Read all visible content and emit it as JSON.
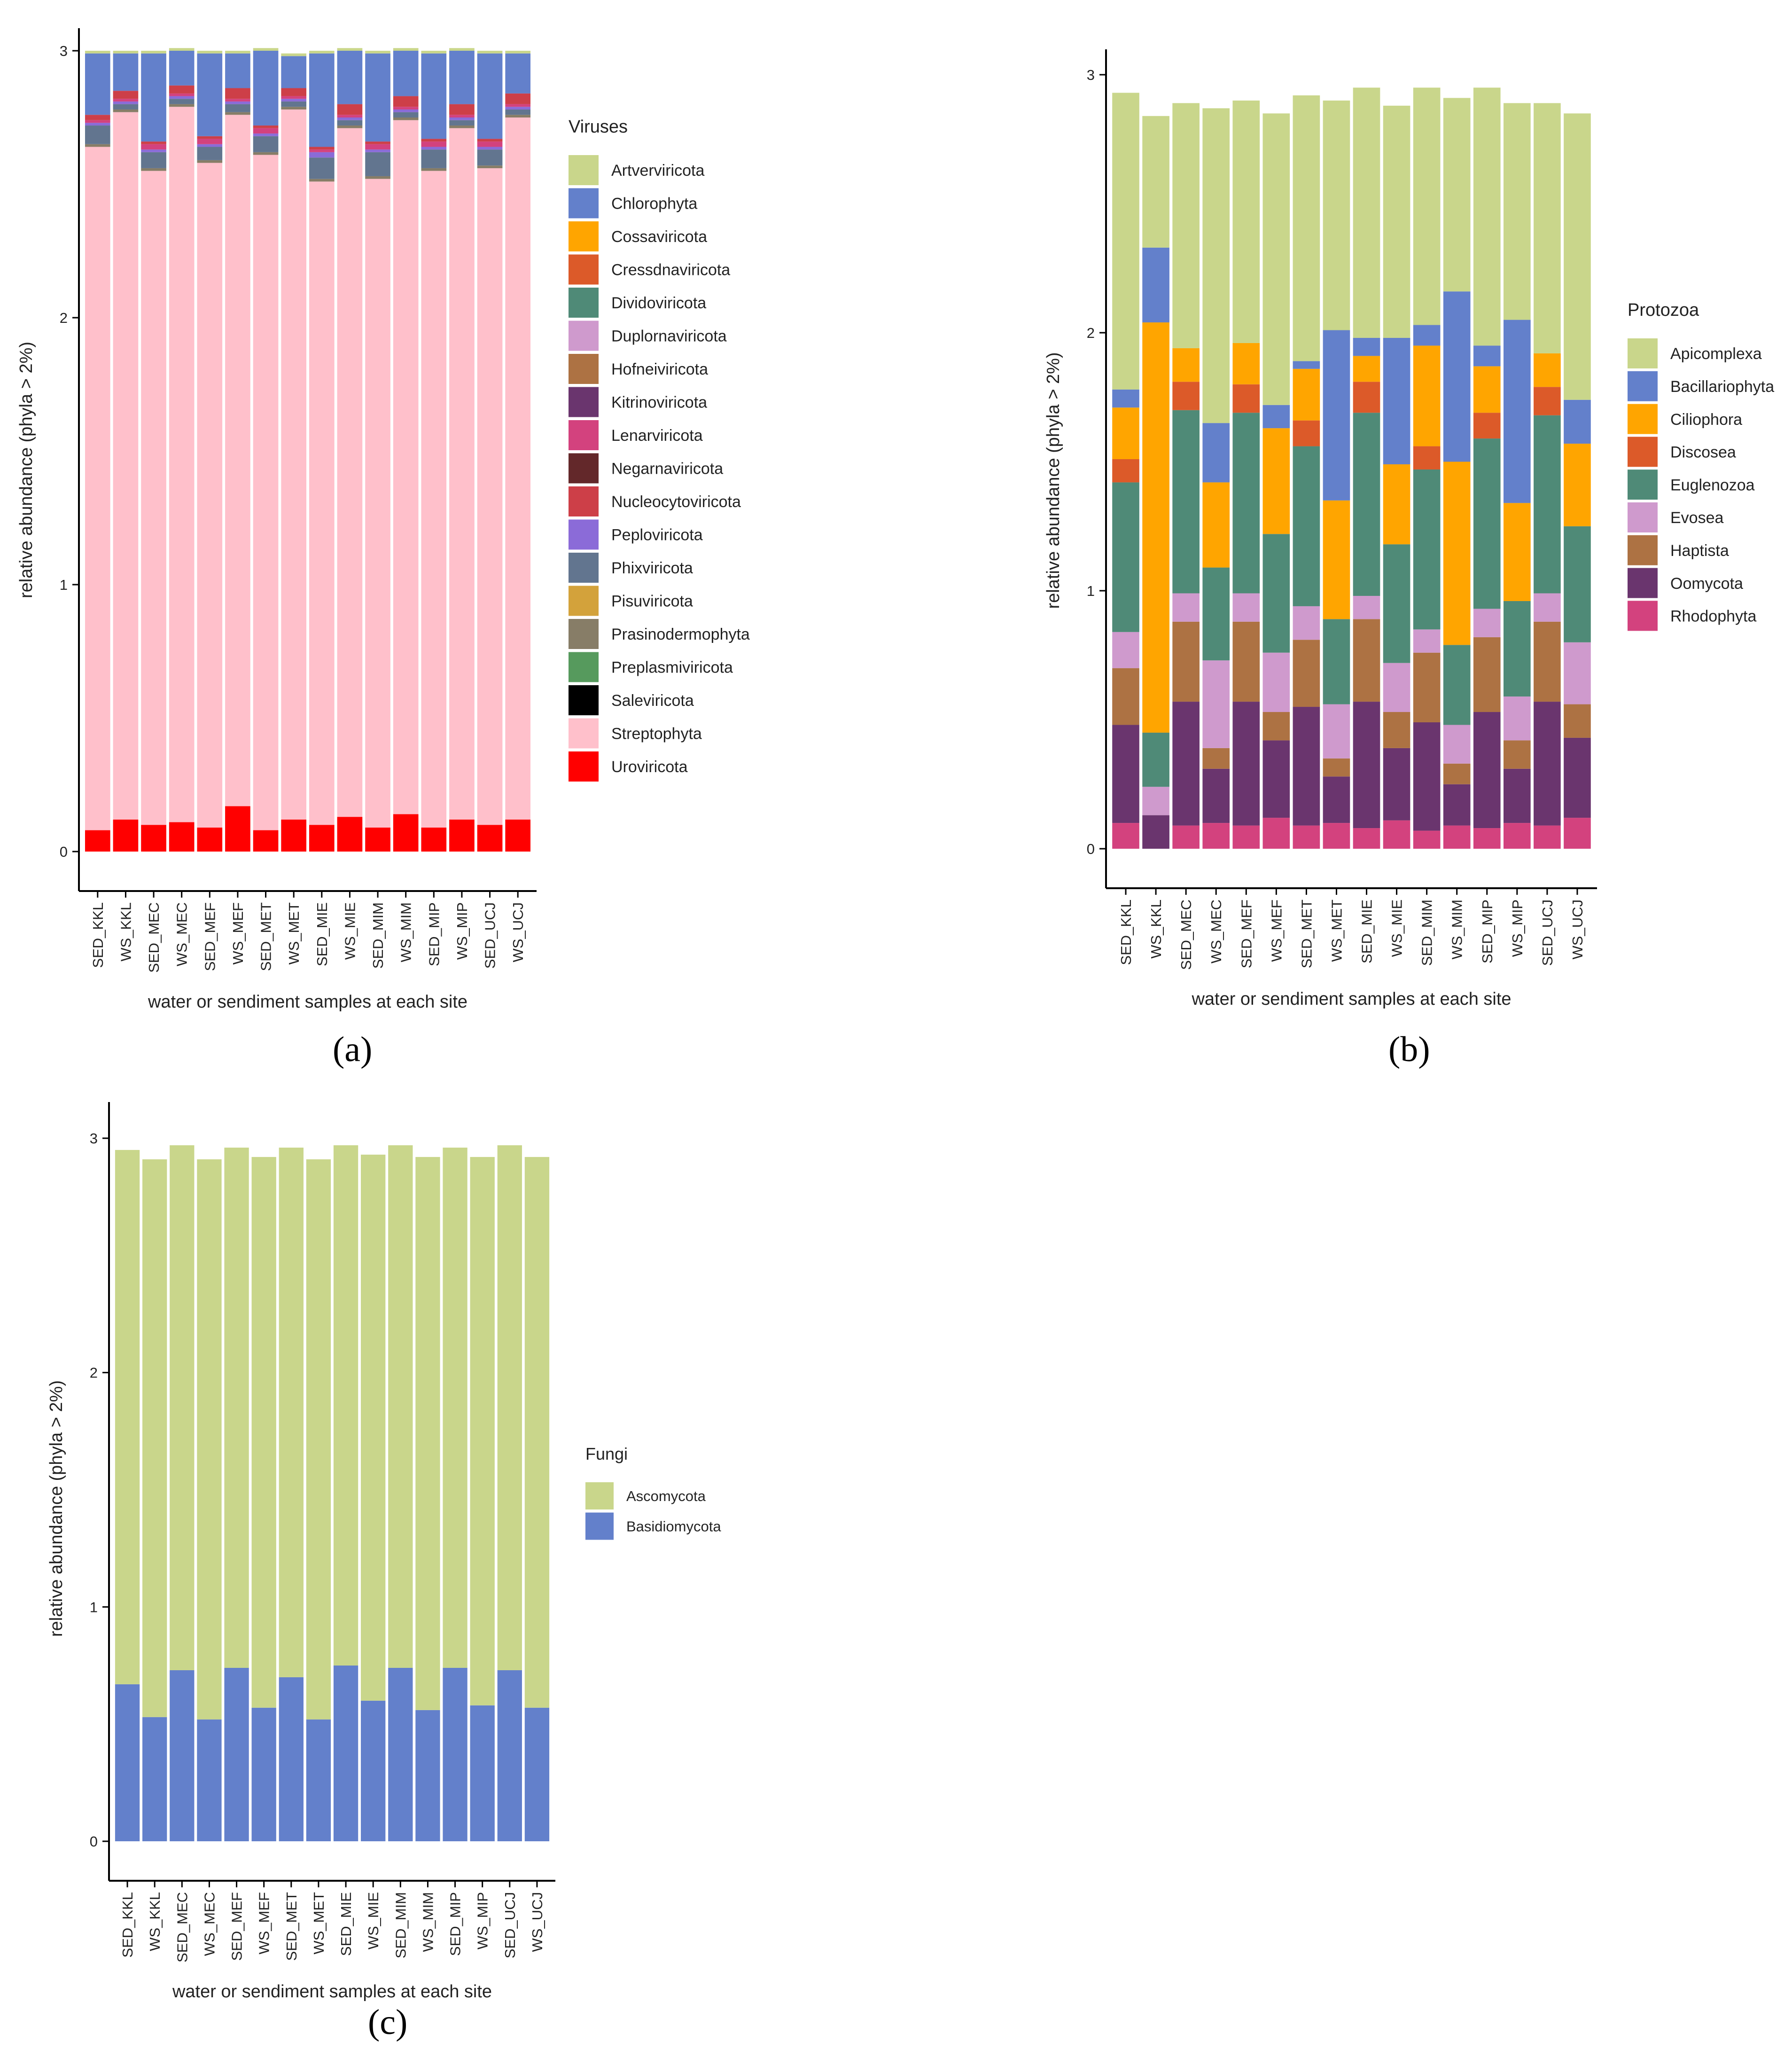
{
  "figure": {
    "panel_labels": [
      "(a)",
      "(b)",
      "(c)"
    ]
  },
  "chart_data": [
    {
      "type": "bar",
      "stacked": true,
      "panel": "(a)",
      "title": "",
      "xlabel": "water or sendiment samples at each site",
      "ylabel": "relative abundance (phyla > 2%)",
      "ylim": [
        0,
        3
      ],
      "yticks": [
        0,
        1,
        2,
        3
      ],
      "legend_title": "Viruses",
      "legend_position": "right",
      "categories": [
        "SED_KKL",
        "WS_KKL",
        "SED_MEC",
        "WS_MEC",
        "SED_MEF",
        "WS_MEF",
        "SED_MET",
        "WS_MET",
        "SED_MIE",
        "WS_MIE",
        "SED_MIM",
        "WS_MIM",
        "SED_MIP",
        "WS_MIP",
        "SED_UCJ",
        "WS_UCJ"
      ],
      "legend": [
        {
          "name": "Artverviricota",
          "color": "#C9D68B"
        },
        {
          "name": "Chlorophyta",
          "color": "#6380CB"
        },
        {
          "name": "Cossaviricota",
          "color": "#FFA500"
        },
        {
          "name": "Cressdnaviricota",
          "color": "#DC5A29"
        },
        {
          "name": "Dividoviricota",
          "color": "#4F8A77"
        },
        {
          "name": "Duplornaviricota",
          "color": "#CF9ACD"
        },
        {
          "name": "Hofneiviricota",
          "color": "#AD7243"
        },
        {
          "name": "Kitrinoviricota",
          "color": "#6A356E"
        },
        {
          "name": "Lenarviricota",
          "color": "#D3427E"
        },
        {
          "name": "Negarnaviricota",
          "color": "#63282A"
        },
        {
          "name": "Nucleocytoviricota",
          "color": "#CD3F48"
        },
        {
          "name": "Peploviricota",
          "color": "#8B6BD8"
        },
        {
          "name": "Phixviricota",
          "color": "#62758F"
        },
        {
          "name": "Pisuviricota",
          "color": "#D3A23B"
        },
        {
          "name": "Prasinodermophyta",
          "color": "#877D67"
        },
        {
          "name": "Preplasmiviricota",
          "color": "#569A5D"
        },
        {
          "name": "Saleviricota",
          "color": "#000000"
        },
        {
          "name": "Streptophyta",
          "color": "#FFC0CB"
        },
        {
          "name": "Uroviricota",
          "color": "#FF0000"
        }
      ],
      "series": [
        {
          "name": "Uroviricota",
          "color": "#FF0000",
          "values": [
            0.08,
            0.12,
            0.1,
            0.11,
            0.09,
            0.17,
            0.08,
            0.12,
            0.1,
            0.13,
            0.09,
            0.14,
            0.09,
            0.12,
            0.1,
            0.12
          ]
        },
        {
          "name": "Streptophyta",
          "color": "#FFC0CB",
          "values": [
            2.56,
            2.65,
            2.45,
            2.68,
            2.49,
            2.59,
            2.53,
            2.66,
            2.41,
            2.58,
            2.43,
            2.6,
            2.46,
            2.59,
            2.46,
            2.63
          ]
        },
        {
          "name": "Prasinodermophyta",
          "color": "#877D67",
          "values": [
            0.01,
            0.01,
            0.01,
            0.01,
            0.01,
            0.01,
            0.01,
            0.01,
            0.01,
            0.01,
            0.01,
            0.01,
            0.01,
            0.01,
            0.01,
            0.01
          ]
        },
        {
          "name": "Phixviricota",
          "color": "#62758F",
          "values": [
            0.07,
            0.02,
            0.06,
            0.02,
            0.05,
            0.03,
            0.06,
            0.02,
            0.08,
            0.02,
            0.09,
            0.02,
            0.07,
            0.02,
            0.06,
            0.02
          ]
        },
        {
          "name": "Peploviricota",
          "color": "#8B6BD8",
          "values": [
            0.01,
            0.01,
            0.01,
            0.01,
            0.01,
            0.01,
            0.01,
            0.01,
            0.02,
            0.01,
            0.01,
            0.01,
            0.01,
            0.01,
            0.01,
            0.01
          ]
        },
        {
          "name": "Lenarviricota",
          "color": "#D3427E",
          "values": [
            0.01,
            0.01,
            0.02,
            0.01,
            0.02,
            0.01,
            0.02,
            0.01,
            0.01,
            0.01,
            0.02,
            0.01,
            0.02,
            0.01,
            0.02,
            0.01
          ]
        },
        {
          "name": "Nucleocytoviricota",
          "color": "#CD3F48",
          "values": [
            0.02,
            0.03,
            0.01,
            0.03,
            0.01,
            0.04,
            0.01,
            0.03,
            0.01,
            0.04,
            0.01,
            0.04,
            0.01,
            0.04,
            0.01,
            0.04
          ]
        },
        {
          "name": "Chlorophyta",
          "color": "#6380CB",
          "values": [
            0.23,
            0.14,
            0.33,
            0.13,
            0.31,
            0.13,
            0.28,
            0.12,
            0.35,
            0.2,
            0.33,
            0.17,
            0.32,
            0.2,
            0.32,
            0.15
          ]
        },
        {
          "name": "Artverviricota",
          "color": "#C9D68B",
          "values": [
            0.01,
            0.01,
            0.01,
            0.01,
            0.01,
            0.01,
            0.01,
            0.01,
            0.01,
            0.01,
            0.01,
            0.01,
            0.01,
            0.01,
            0.01,
            0.01
          ]
        }
      ]
    },
    {
      "type": "bar",
      "stacked": true,
      "panel": "(b)",
      "title": "",
      "xlabel": "water or sendiment samples at each site",
      "ylabel": "relative abundance (phyla > 2%)",
      "ylim": [
        0,
        3
      ],
      "yticks": [
        0,
        1,
        2,
        3
      ],
      "legend_title": "Protozoa",
      "legend_position": "right",
      "categories": [
        "SED_KKL",
        "WS_KKL",
        "SED_MEC",
        "WS_MEC",
        "SED_MEF",
        "WS_MEF",
        "SED_MET",
        "WS_MET",
        "SED_MIE",
        "WS_MIE",
        "SED_MIM",
        "WS_MIM",
        "SED_MIP",
        "WS_MIP",
        "SED_UCJ",
        "WS_UCJ"
      ],
      "legend": [
        {
          "name": "Apicomplexa",
          "color": "#C9D68B"
        },
        {
          "name": "Bacillariophyta",
          "color": "#6380CB"
        },
        {
          "name": "Ciliophora",
          "color": "#FFA500"
        },
        {
          "name": "Discosea",
          "color": "#DC5A29"
        },
        {
          "name": "Euglenozoa",
          "color": "#4F8A77"
        },
        {
          "name": "Evosea",
          "color": "#CF9ACD"
        },
        {
          "name": "Haptista",
          "color": "#AD7243"
        },
        {
          "name": "Oomycota",
          "color": "#6A356E"
        },
        {
          "name": "Rhodophyta",
          "color": "#D3427E"
        }
      ],
      "series": [
        {
          "name": "Rhodophyta",
          "color": "#D3427E",
          "values": [
            0.1,
            0.0,
            0.09,
            0.1,
            0.09,
            0.12,
            0.09,
            0.1,
            0.08,
            0.11,
            0.07,
            0.09,
            0.08,
            0.1,
            0.09,
            0.12
          ]
        },
        {
          "name": "Oomycota",
          "color": "#6A356E",
          "values": [
            0.38,
            0.13,
            0.48,
            0.21,
            0.48,
            0.3,
            0.46,
            0.18,
            0.49,
            0.28,
            0.42,
            0.16,
            0.45,
            0.21,
            0.48,
            0.31
          ]
        },
        {
          "name": "Haptista",
          "color": "#AD7243",
          "values": [
            0.22,
            0.0,
            0.31,
            0.08,
            0.31,
            0.11,
            0.26,
            0.07,
            0.32,
            0.14,
            0.27,
            0.08,
            0.29,
            0.11,
            0.31,
            0.13
          ]
        },
        {
          "name": "Evosea",
          "color": "#CF9ACD",
          "values": [
            0.14,
            0.11,
            0.11,
            0.34,
            0.11,
            0.23,
            0.13,
            0.21,
            0.09,
            0.19,
            0.09,
            0.15,
            0.11,
            0.17,
            0.11,
            0.24
          ]
        },
        {
          "name": "Euglenozoa",
          "color": "#4F8A77",
          "values": [
            0.58,
            0.21,
            0.71,
            0.36,
            0.7,
            0.46,
            0.62,
            0.33,
            0.71,
            0.46,
            0.62,
            0.31,
            0.66,
            0.37,
            0.69,
            0.45
          ]
        },
        {
          "name": "Discosea",
          "color": "#DC5A29",
          "values": [
            0.09,
            0.0,
            0.11,
            0.0,
            0.11,
            0.0,
            0.1,
            0.0,
            0.12,
            0.0,
            0.09,
            0.0,
            0.1,
            0.0,
            0.11,
            0.0
          ]
        },
        {
          "name": "Ciliophora",
          "color": "#FFA500",
          "values": [
            0.2,
            1.59,
            0.13,
            0.33,
            0.16,
            0.41,
            0.2,
            0.46,
            0.1,
            0.31,
            0.39,
            0.71,
            0.18,
            0.38,
            0.13,
            0.32
          ]
        },
        {
          "name": "Bacillariophyta",
          "color": "#6380CB",
          "values": [
            0.07,
            0.29,
            0.0,
            0.23,
            0.0,
            0.09,
            0.03,
            0.66,
            0.07,
            0.49,
            0.08,
            0.66,
            0.08,
            0.71,
            0.0,
            0.17
          ]
        },
        {
          "name": "Apicomplexa",
          "color": "#C9D68B",
          "values": [
            1.15,
            0.51,
            0.95,
            1.22,
            0.94,
            1.13,
            1.03,
            0.89,
            0.97,
            0.9,
            0.92,
            0.75,
            1.0,
            0.84,
            0.97,
            1.11
          ]
        }
      ]
    },
    {
      "type": "bar",
      "stacked": true,
      "panel": "(c)",
      "title": "",
      "xlabel": "water or sendiment samples at each site",
      "ylabel": "relative abundance (phyla > 2%)",
      "ylim": [
        0,
        3
      ],
      "yticks": [
        0,
        1,
        2,
        3
      ],
      "legend_title": "Fungi",
      "legend_position": "right",
      "categories": [
        "SED_KKL",
        "WS_KKL",
        "SED_MEC",
        "WS_MEC",
        "SED_MEF",
        "WS_MEF",
        "SED_MET",
        "WS_MET",
        "SED_MIE",
        "WS_MIE",
        "SED_MIM",
        "WS_MIM",
        "SED_MIP",
        "WS_MIP",
        "SED_UCJ",
        "WS_UCJ"
      ],
      "legend": [
        {
          "name": "Ascomycota",
          "color": "#C9D68B"
        },
        {
          "name": "Basidiomycota",
          "color": "#6380CB"
        }
      ],
      "series": [
        {
          "name": "Basidiomycota",
          "color": "#6380CB",
          "values": [
            0.67,
            0.53,
            0.73,
            0.52,
            0.74,
            0.57,
            0.7,
            0.52,
            0.75,
            0.6,
            0.74,
            0.56,
            0.74,
            0.58,
            0.73,
            0.57
          ]
        },
        {
          "name": "Ascomycota",
          "color": "#C9D68B",
          "values": [
            2.28,
            2.38,
            2.24,
            2.39,
            2.22,
            2.35,
            2.26,
            2.39,
            2.22,
            2.33,
            2.23,
            2.36,
            2.22,
            2.34,
            2.24,
            2.35
          ]
        }
      ]
    }
  ]
}
